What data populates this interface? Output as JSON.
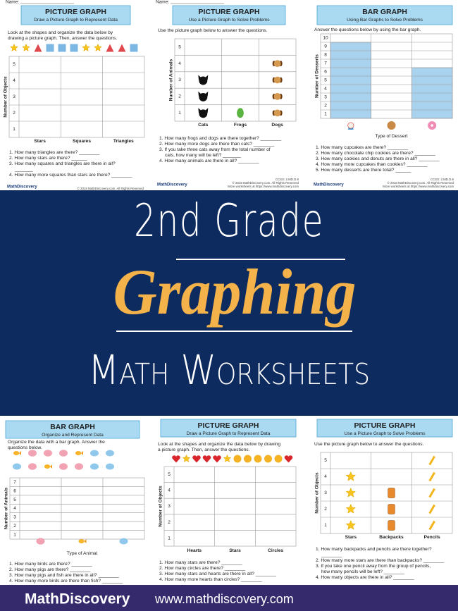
{
  "worksheets": [
    {
      "name_label": "Name:",
      "title": "PICTURE GRAPH",
      "subtitle": "Draw a Picture Graph to Represent Data",
      "instructions": "Look at the shapes and organize the data below by drawing a picture graph. Then, answer the questions.",
      "y_axis_label": "Number of Objects",
      "y_ticks": [
        5,
        4,
        3,
        2,
        1
      ],
      "categories": [
        "Stars",
        "Squares",
        "Triangles"
      ],
      "questions": [
        "1. How many triangles are there? ________",
        "2. How many stars are there? ______",
        "3. How many squares and triangles are there in all? _______",
        "4. How many more squares than stars are there? ________"
      ],
      "footer": {
        "brand": "MathDiscovery",
        "lines": [
          "© 2018 MathDiscovery.com. All Rights Reserved"
        ]
      }
    },
    {
      "name_label": "Name:",
      "title": "PICTURE GRAPH",
      "subtitle": "Use a Picture Graph to Solve Problems",
      "instructions": "Use the picture graph below to answer the questions.",
      "y_axis_label": "Number of Animals",
      "y_ticks": [
        5,
        4,
        3,
        2,
        1
      ],
      "categories": [
        "Cats",
        "Frogs",
        "Dogs"
      ],
      "questions": [
        "1. How many frogs and dogs are there together? ________",
        "2. How many more dogs are there than cats? ________",
        "3. If you take three cats away from the total number of cats, how many will be left? _______",
        "4. How many animals are there in all? ________"
      ],
      "footer": {
        "brand": "MathDiscovery",
        "lines": [
          "CCSS: 2.MD.D.9",
          "© 2018 MathDiscovery.com. All Rights Reserved",
          "More worksheets at https://www.mathdiscovery.com"
        ]
      }
    },
    {
      "title": "BAR GRAPH",
      "subtitle": "Using Bar Graphs to Solve Problems",
      "instructions": "Answer the questions below by using the bar graph.",
      "y_axis_label": "Number of Desserts",
      "y_ticks": [
        10,
        9,
        8,
        7,
        6,
        5,
        4,
        3,
        2,
        1
      ],
      "x_axis_label": "Type of Dessert",
      "questions": [
        "1. How many cupcakes are there? ________",
        "2. How many chocolate chip cookies are there? ________",
        "3. How many cookies and donuts are there in all? ________",
        "4. How many more cupcakes than cookies? ________",
        "5. How many desserts are there total? ______"
      ],
      "footer": {
        "brand": "MathDiscovery",
        "lines": [
          "CCSS: 2.MD.D.9",
          "© 2018 MathDiscovery.com. All Rights Reserved",
          "More worksheets at https://www.mathdiscovery.com"
        ]
      }
    },
    {
      "title": "BAR GRAPH",
      "subtitle": "Organize and Represent Data",
      "instructions": "Organize the data with a bar graph. Answer the questions below.",
      "y_axis_label": "Number of Animals",
      "y_ticks": [
        7,
        6,
        5,
        4,
        3,
        2,
        1
      ],
      "x_axis_label": "Type of Animal",
      "questions": [
        "1. How many birds are there? ________",
        "2. How many pigs are there? ________",
        "3. How many pigs and fish are there in all? ________",
        "4. How many more birds are there than fish? ________"
      ]
    },
    {
      "title": "PICTURE GRAPH",
      "subtitle": "Draw a Picture Graph to Represent Data",
      "instructions": "Look at the shapes and organize the data below by drawing a picture graph. Then, answer the questions.",
      "y_axis_label": "Number of Objects",
      "y_ticks": [
        5,
        4,
        3,
        2,
        1
      ],
      "categories": [
        "Hearts",
        "Stars",
        "Circles"
      ],
      "questions": [
        "1. How many stars are there? ________",
        "2. How many circles are there? ________",
        "3. How many stars and hearts are there in all? ________",
        "4. How many more hearts than circles? ________"
      ]
    },
    {
      "title": "PICTURE GRAPH",
      "subtitle": "Use a Picture Graph to Solve Problems",
      "instructions": "Use the picture graph below to answer the questions.",
      "y_axis_label": "Number of Objects",
      "y_ticks": [
        5,
        4,
        3,
        2,
        1
      ],
      "categories": [
        "Stars",
        "Backpacks",
        "Pencils"
      ],
      "questions": [
        "1. How many backpacks and pencils are there together? ________",
        "2. How many more stars are there than backpacks? ________",
        "3. If you take one pencil away from the group of pencils, how many pencils will be left? ________",
        "4. How many objects are there in all? ________"
      ]
    }
  ],
  "banner": {
    "line1": "2nd Grade",
    "line2": "Graphing",
    "line3": "Math Worksheets"
  },
  "footer": {
    "brand": "MathDiscovery",
    "url": "www.mathdiscovery.com"
  }
}
